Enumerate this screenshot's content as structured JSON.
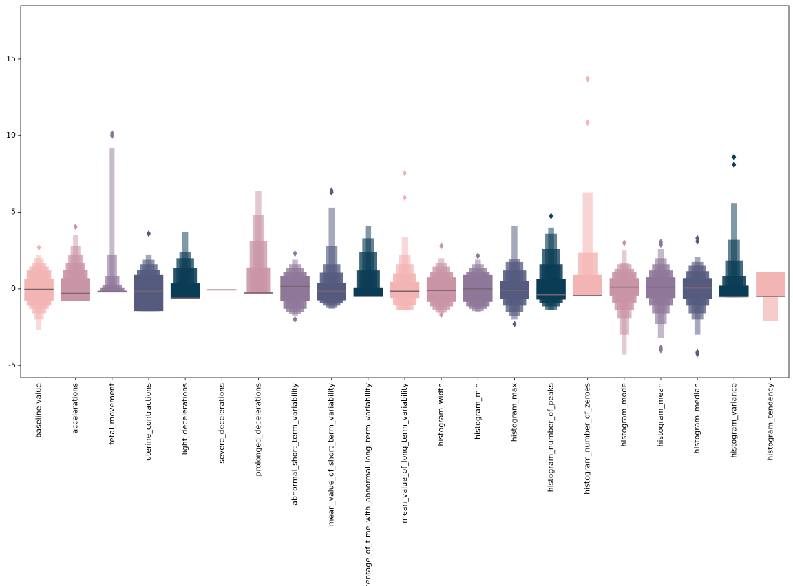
{
  "chart_data": {
    "type": "boxen",
    "categories": [
      "baseline value",
      "accelerations",
      "fetal_movement",
      "uterine_contractions",
      "light_decelerations",
      "severe_decelerations",
      "prolonged_decelerations",
      "abnormal_short_term_variability",
      "mean_value_of_short_term_variability",
      "percentage_of_time_with_abnormal_long_term_variability",
      "mean_value_of_long_term_variability",
      "histogram_width",
      "histogram_min",
      "histogram_max",
      "histogram_number_of_peaks",
      "histogram_number_of_zeroes",
      "histogram_mode",
      "histogram_mean",
      "histogram_median",
      "histogram_variance",
      "histogram_tendency"
    ],
    "palette": [
      "#f2b5b4",
      "#c995a6",
      "#8e7798",
      "#555b7f",
      "#0b3c55"
    ],
    "boxes": [
      {
        "median": -0.03,
        "levels": [
          [
            -0.76,
            0.67
          ],
          [
            -1.1,
            1.2
          ],
          [
            -1.3,
            1.45
          ],
          [
            -1.6,
            1.7
          ],
          [
            -2.0,
            2.0
          ],
          [
            -2.7,
            2.2
          ]
        ],
        "outliers": [
          2.7
        ]
      },
      {
        "median": -0.3,
        "levels": [
          [
            -0.8,
            0.7
          ],
          [
            -0.8,
            1.25
          ],
          [
            -0.8,
            1.7
          ],
          [
            -0.8,
            2.2
          ],
          [
            -0.8,
            2.8
          ],
          [
            -0.8,
            3.5
          ]
        ],
        "outliers": [
          4.05
        ]
      },
      {
        "median": -0.2,
        "levels": [
          [
            -0.22,
            -0.12
          ],
          [
            -0.22,
            0.05
          ],
          [
            -0.22,
            0.25
          ],
          [
            -0.22,
            0.8
          ],
          [
            -0.22,
            2.2
          ],
          [
            -0.22,
            9.2
          ]
        ],
        "outliers": [
          10.0,
          10.15
        ]
      },
      {
        "median": -0.15,
        "levels": [
          [
            -1.45,
            0.9
          ],
          [
            -1.45,
            1.25
          ],
          [
            -1.45,
            1.6
          ],
          [
            -1.45,
            1.9
          ],
          [
            -1.45,
            2.2
          ]
        ],
        "outliers": [
          3.6
        ]
      },
      {
        "median": -0.6,
        "levels": [
          [
            -0.6,
            0.35
          ],
          [
            -0.6,
            1.35
          ],
          [
            -0.6,
            2.0
          ],
          [
            -0.6,
            2.4
          ],
          [
            -0.6,
            3.7
          ]
        ],
        "outliers": []
      },
      {
        "median": -0.06,
        "levels": [
          [
            -0.06,
            -0.06
          ]
        ],
        "outliers": []
      },
      {
        "median": -0.27,
        "levels": [
          [
            -0.27,
            -0.27
          ],
          [
            -0.27,
            1.4
          ],
          [
            -0.27,
            3.1
          ],
          [
            -0.27,
            4.8
          ],
          [
            -0.27,
            6.4
          ]
        ],
        "outliers": []
      },
      {
        "median": 0.15,
        "levels": [
          [
            -0.8,
            0.8
          ],
          [
            -1.3,
            1.1
          ],
          [
            -1.5,
            1.35
          ],
          [
            -1.65,
            1.6
          ],
          [
            -1.8,
            1.9
          ]
        ],
        "outliers": [
          2.3,
          -2.0
        ]
      },
      {
        "median": -0.15,
        "levels": [
          [
            -0.75,
            0.4
          ],
          [
            -0.95,
            1.05
          ],
          [
            -1.1,
            1.6
          ],
          [
            -1.25,
            2.8
          ],
          [
            -1.3,
            5.3
          ]
        ],
        "outliers": [
          6.3,
          6.4
        ]
      },
      {
        "median": -0.5,
        "levels": [
          [
            -0.5,
            0.05
          ],
          [
            -0.5,
            1.2
          ],
          [
            -0.5,
            2.4
          ],
          [
            -0.5,
            3.3
          ],
          [
            -0.5,
            4.1
          ]
        ],
        "outliers": []
      },
      {
        "median": -0.15,
        "levels": [
          [
            -0.6,
            0.45
          ],
          [
            -1.05,
            1.0
          ],
          [
            -1.4,
            1.6
          ],
          [
            -1.4,
            2.2
          ],
          [
            -1.4,
            3.4
          ]
        ],
        "outliers": [
          5.95,
          7.55
        ]
      },
      {
        "median": -0.1,
        "levels": [
          [
            -0.85,
            0.75
          ],
          [
            -1.15,
            1.1
          ],
          [
            -1.35,
            1.45
          ],
          [
            -1.55,
            1.7
          ],
          [
            -1.6,
            2.0
          ]
        ],
        "outliers": [
          2.8,
          -1.7
        ]
      },
      {
        "median": 0.0,
        "levels": [
          [
            -0.85,
            0.9
          ],
          [
            -1.15,
            1.1
          ],
          [
            -1.3,
            1.35
          ],
          [
            -1.45,
            1.6
          ],
          [
            -1.5,
            1.9
          ]
        ],
        "outliers": [
          2.15
        ]
      },
      {
        "median": -0.1,
        "levels": [
          [
            -0.65,
            0.5
          ],
          [
            -1.1,
            1.2
          ],
          [
            -1.5,
            1.75
          ],
          [
            -1.8,
            1.95
          ],
          [
            -2.0,
            4.1
          ]
        ],
        "outliers": [
          -2.3
        ]
      },
      {
        "median": -0.4,
        "levels": [
          [
            -0.7,
            0.65
          ],
          [
            -0.95,
            1.6
          ],
          [
            -1.15,
            2.6
          ],
          [
            -1.35,
            3.6
          ],
          [
            -1.4,
            4.0
          ]
        ],
        "outliers": [
          4.75
        ]
      },
      {
        "median": -0.45,
        "levels": [
          [
            -0.45,
            0.9
          ],
          [
            -0.45,
            2.35
          ],
          [
            -0.45,
            6.3
          ]
        ],
        "outliers": [
          10.85,
          13.7
        ]
      },
      {
        "median": 0.1,
        "levels": [
          [
            -0.45,
            0.7
          ],
          [
            -0.9,
            1.1
          ],
          [
            -1.4,
            1.3
          ],
          [
            -1.95,
            1.6
          ],
          [
            -3.0,
            1.7
          ],
          [
            -4.3,
            2.5
          ]
        ],
        "outliers": [
          3.0
        ]
      },
      {
        "median": 0.1,
        "levels": [
          [
            -0.6,
            0.75
          ],
          [
            -1.1,
            1.2
          ],
          [
            -1.6,
            1.6
          ],
          [
            -2.3,
            2.0
          ],
          [
            -3.2,
            2.6
          ]
        ],
        "outliers": [
          2.9,
          3.05,
          -3.85,
          -4.0
        ]
      },
      {
        "median": 0.05,
        "levels": [
          [
            -0.65,
            0.7
          ],
          [
            -1.1,
            1.15
          ],
          [
            -1.6,
            1.5
          ],
          [
            -2.0,
            1.75
          ],
          [
            -3.0,
            2.1
          ]
        ],
        "outliers": [
          3.1,
          3.3,
          -4.15,
          -4.25
        ]
      },
      {
        "median": -0.5,
        "levels": [
          [
            -0.55,
            0.2
          ],
          [
            -0.55,
            0.85
          ],
          [
            -0.55,
            1.85
          ],
          [
            -0.55,
            3.2
          ],
          [
            -0.55,
            5.6
          ]
        ],
        "outliers": [
          8.1,
          8.6
        ]
      },
      {
        "median": -0.5,
        "levels": [
          [
            -0.5,
            1.1
          ],
          [
            -2.1,
            1.1
          ]
        ],
        "outliers": []
      }
    ],
    "ylim": [
      -5.8,
      18.5
    ],
    "yticks": [
      -5,
      0,
      5,
      10,
      15
    ]
  }
}
